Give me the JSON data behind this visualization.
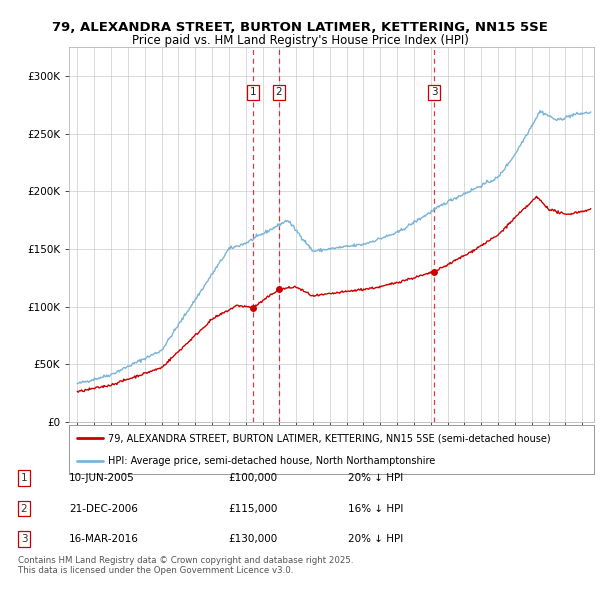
{
  "title_line1": "79, ALEXANDRA STREET, BURTON LATIMER, KETTERING, NN15 5SE",
  "title_line2": "Price paid vs. HM Land Registry's House Price Index (HPI)",
  "background_color": "#ffffff",
  "plot_bg_color": "#ffffff",
  "grid_color": "#cccccc",
  "hpi_color": "#7ab4d8",
  "price_color": "#cc0000",
  "transactions": [
    {
      "num": 1,
      "date_str": "10-JUN-2005",
      "price": 100000,
      "pct": "20%",
      "x_year": 2005.44
    },
    {
      "num": 2,
      "date_str": "21-DEC-2006",
      "price": 115000,
      "pct": "16%",
      "x_year": 2006.97
    },
    {
      "num": 3,
      "date_str": "16-MAR-2016",
      "price": 130000,
      "pct": "20%",
      "x_year": 2016.21
    }
  ],
  "legend_label_red": "79, ALEXANDRA STREET, BURTON LATIMER, KETTERING, NN15 5SE (semi-detached house)",
  "legend_label_blue": "HPI: Average price, semi-detached house, North Northamptonshire",
  "footnote": "Contains HM Land Registry data © Crown copyright and database right 2025.\nThis data is licensed under the Open Government Licence v3.0.",
  "ylim": [
    0,
    325000
  ],
  "xlim_start": 1994.5,
  "xlim_end": 2025.7,
  "yticks": [
    0,
    50000,
    100000,
    150000,
    200000,
    250000,
    300000
  ],
  "xtick_start": 1995,
  "xtick_end": 2025
}
